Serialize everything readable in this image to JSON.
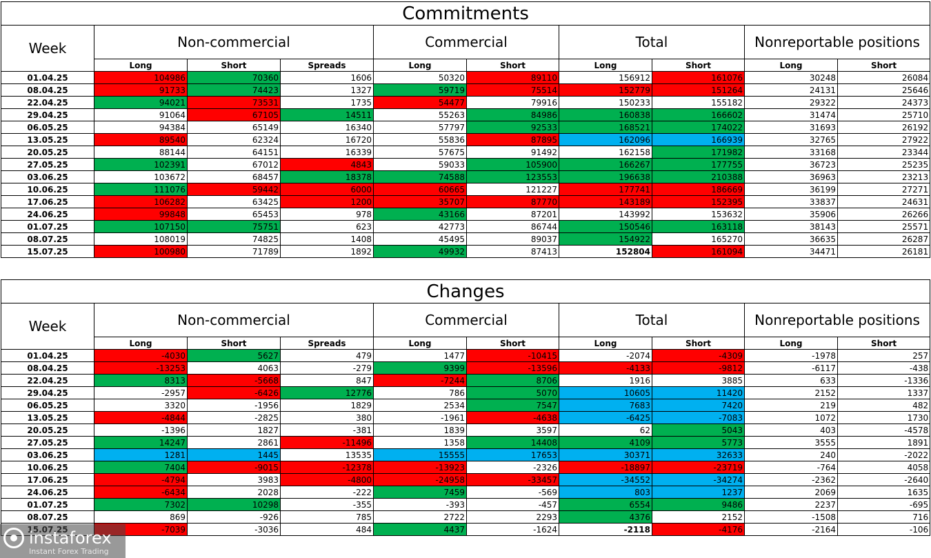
{
  "colors": {
    "red": "#ff0000",
    "green": "#00b050",
    "blue": "#00b0f0",
    "grid": "#000000"
  },
  "groups": {
    "week": "Week",
    "noncommercial": "Non-commercial",
    "commercial": "Commercial",
    "total": "Total",
    "nonreportable": "Nonreportable positions"
  },
  "subheaders": [
    "Long",
    "Short",
    "Spreads",
    "Long",
    "Short",
    "Long",
    "Short",
    "Long",
    "Short"
  ],
  "commitments": {
    "title": "Commitments",
    "rows": [
      {
        "date": "01.04.25",
        "cells": [
          [
            "104986",
            "r"
          ],
          [
            "70360",
            "g"
          ],
          [
            "1606",
            ""
          ],
          [
            "50320",
            ""
          ],
          [
            "89110",
            "r"
          ],
          [
            "156912",
            ""
          ],
          [
            "161076",
            "r"
          ],
          [
            "30248",
            ""
          ],
          [
            "26084",
            ""
          ]
        ]
      },
      {
        "date": "08.04.25",
        "cells": [
          [
            "91733",
            "r"
          ],
          [
            "74423",
            "g"
          ],
          [
            "1327",
            ""
          ],
          [
            "59719",
            "g"
          ],
          [
            "75514",
            "r"
          ],
          [
            "152779",
            "r"
          ],
          [
            "151264",
            "r"
          ],
          [
            "24131",
            ""
          ],
          [
            "25646",
            ""
          ]
        ]
      },
      {
        "date": "22.04.25",
        "cells": [
          [
            "94021",
            "g"
          ],
          [
            "73531",
            "r"
          ],
          [
            "1735",
            ""
          ],
          [
            "54477",
            "r"
          ],
          [
            "79916",
            ""
          ],
          [
            "150233",
            ""
          ],
          [
            "155182",
            ""
          ],
          [
            "29322",
            ""
          ],
          [
            "24373",
            ""
          ]
        ]
      },
      {
        "date": "29.04.25",
        "cells": [
          [
            "91064",
            ""
          ],
          [
            "67105",
            "r"
          ],
          [
            "14511",
            "g"
          ],
          [
            "55263",
            ""
          ],
          [
            "84986",
            "g"
          ],
          [
            "160838",
            "g"
          ],
          [
            "166602",
            "g"
          ],
          [
            "31474",
            ""
          ],
          [
            "25710",
            ""
          ]
        ]
      },
      {
        "date": "06.05.25",
        "cells": [
          [
            "94384",
            ""
          ],
          [
            "65149",
            ""
          ],
          [
            "16340",
            ""
          ],
          [
            "57797",
            ""
          ],
          [
            "92533",
            "g"
          ],
          [
            "168521",
            "g"
          ],
          [
            "174022",
            "g"
          ],
          [
            "31693",
            ""
          ],
          [
            "26192",
            ""
          ]
        ]
      },
      {
        "date": "13.05.25",
        "cells": [
          [
            "89540",
            "r"
          ],
          [
            "62324",
            ""
          ],
          [
            "16720",
            ""
          ],
          [
            "55836",
            ""
          ],
          [
            "87895",
            "r"
          ],
          [
            "162096",
            "b"
          ],
          [
            "166939",
            "b"
          ],
          [
            "32765",
            ""
          ],
          [
            "27922",
            ""
          ]
        ]
      },
      {
        "date": "20.05.25",
        "cells": [
          [
            "88144",
            ""
          ],
          [
            "64151",
            ""
          ],
          [
            "16339",
            ""
          ],
          [
            "57675",
            ""
          ],
          [
            "91492",
            ""
          ],
          [
            "162158",
            ""
          ],
          [
            "171982",
            "g"
          ],
          [
            "33168",
            ""
          ],
          [
            "23344",
            ""
          ]
        ]
      },
      {
        "date": "27.05.25",
        "cells": [
          [
            "102391",
            "g"
          ],
          [
            "67012",
            ""
          ],
          [
            "4843",
            "r"
          ],
          [
            "59033",
            ""
          ],
          [
            "105900",
            "g"
          ],
          [
            "166267",
            "g"
          ],
          [
            "177755",
            "g"
          ],
          [
            "36723",
            ""
          ],
          [
            "25235",
            ""
          ]
        ]
      },
      {
        "date": "03.06.25",
        "cells": [
          [
            "103672",
            ""
          ],
          [
            "68457",
            ""
          ],
          [
            "18378",
            "g"
          ],
          [
            "74588",
            "g"
          ],
          [
            "123553",
            "g"
          ],
          [
            "196638",
            "g"
          ],
          [
            "210388",
            "g"
          ],
          [
            "36963",
            ""
          ],
          [
            "23213",
            ""
          ]
        ]
      },
      {
        "date": "10.06.25",
        "cells": [
          [
            "111076",
            "g"
          ],
          [
            "59442",
            "r"
          ],
          [
            "6000",
            "r"
          ],
          [
            "60665",
            "r"
          ],
          [
            "121227",
            ""
          ],
          [
            "177741",
            "r"
          ],
          [
            "186669",
            "r"
          ],
          [
            "36199",
            ""
          ],
          [
            "27271",
            ""
          ]
        ]
      },
      {
        "date": "17.06.25",
        "cells": [
          [
            "106282",
            "r"
          ],
          [
            "63425",
            ""
          ],
          [
            "1200",
            "r"
          ],
          [
            "35707",
            "r"
          ],
          [
            "87770",
            "r"
          ],
          [
            "143189",
            "r"
          ],
          [
            "152395",
            "r"
          ],
          [
            "33837",
            ""
          ],
          [
            "24631",
            ""
          ]
        ]
      },
      {
        "date": "24.06.25",
        "cells": [
          [
            "99848",
            "r"
          ],
          [
            "65453",
            ""
          ],
          [
            "978",
            ""
          ],
          [
            "43166",
            "g"
          ],
          [
            "87201",
            ""
          ],
          [
            "143992",
            ""
          ],
          [
            "153632",
            ""
          ],
          [
            "35906",
            ""
          ],
          [
            "26266",
            ""
          ]
        ]
      },
      {
        "date": "01.07.25",
        "cells": [
          [
            "107150",
            "g"
          ],
          [
            "75751",
            "g"
          ],
          [
            "623",
            ""
          ],
          [
            "42773",
            ""
          ],
          [
            "86744",
            ""
          ],
          [
            "150546",
            "g"
          ],
          [
            "163118",
            "g"
          ],
          [
            "38143",
            ""
          ],
          [
            "25571",
            ""
          ]
        ]
      },
      {
        "date": "08.07.25",
        "cells": [
          [
            "108019",
            ""
          ],
          [
            "74825",
            ""
          ],
          [
            "1408",
            ""
          ],
          [
            "45495",
            ""
          ],
          [
            "89037",
            ""
          ],
          [
            "154922",
            "g"
          ],
          [
            "165270",
            ""
          ],
          [
            "36635",
            ""
          ],
          [
            "26287",
            ""
          ]
        ]
      },
      {
        "date": "15.07.25",
        "cells": [
          [
            "100980",
            "r"
          ],
          [
            "71789",
            ""
          ],
          [
            "1892",
            ""
          ],
          [
            "49932",
            "g"
          ],
          [
            "87413",
            ""
          ],
          [
            "152804",
            "B"
          ],
          [
            "161094",
            "r"
          ],
          [
            "34471",
            ""
          ],
          [
            "26181",
            ""
          ]
        ]
      }
    ]
  },
  "changes": {
    "title": "Changes",
    "rows": [
      {
        "date": "01.04.25",
        "cells": [
          [
            "-4030",
            "r"
          ],
          [
            "5627",
            "g"
          ],
          [
            "479",
            ""
          ],
          [
            "1477",
            ""
          ],
          [
            "-10415",
            "r"
          ],
          [
            "-2074",
            ""
          ],
          [
            "-4309",
            "r"
          ],
          [
            "-1978",
            ""
          ],
          [
            "257",
            ""
          ]
        ]
      },
      {
        "date": "08.04.25",
        "cells": [
          [
            "-13253",
            "r"
          ],
          [
            "4063",
            ""
          ],
          [
            "-279",
            ""
          ],
          [
            "9399",
            "g"
          ],
          [
            "-13596",
            "r"
          ],
          [
            "-4133",
            "r"
          ],
          [
            "-9812",
            "r"
          ],
          [
            "-6117",
            ""
          ],
          [
            "-438",
            ""
          ]
        ]
      },
      {
        "date": "22.04.25",
        "cells": [
          [
            "8313",
            "g"
          ],
          [
            "-5668",
            "r"
          ],
          [
            "847",
            ""
          ],
          [
            "-7244",
            "r"
          ],
          [
            "8706",
            "g"
          ],
          [
            "1916",
            ""
          ],
          [
            "3885",
            ""
          ],
          [
            "633",
            ""
          ],
          [
            "-1336",
            ""
          ]
        ]
      },
      {
        "date": "29.04.25",
        "cells": [
          [
            "-2957",
            ""
          ],
          [
            "-6426",
            "r"
          ],
          [
            "12776",
            "g"
          ],
          [
            "786",
            ""
          ],
          [
            "5070",
            "g"
          ],
          [
            "10605",
            "b"
          ],
          [
            "11420",
            "b"
          ],
          [
            "2152",
            ""
          ],
          [
            "1337",
            ""
          ]
        ]
      },
      {
        "date": "06.05.25",
        "cells": [
          [
            "3320",
            ""
          ],
          [
            "-1956",
            ""
          ],
          [
            "1829",
            ""
          ],
          [
            "2534",
            ""
          ],
          [
            "7547",
            "g"
          ],
          [
            "7683",
            "b"
          ],
          [
            "7420",
            "b"
          ],
          [
            "219",
            ""
          ],
          [
            "482",
            ""
          ]
        ]
      },
      {
        "date": "13.05.25",
        "cells": [
          [
            "-4844",
            "r"
          ],
          [
            "-2825",
            ""
          ],
          [
            "380",
            ""
          ],
          [
            "-1961",
            ""
          ],
          [
            "-4638",
            "r"
          ],
          [
            "-6425",
            "b"
          ],
          [
            "-7083",
            "b"
          ],
          [
            "1072",
            ""
          ],
          [
            "1730",
            ""
          ]
        ]
      },
      {
        "date": "20.05.25",
        "cells": [
          [
            "-1396",
            ""
          ],
          [
            "1827",
            ""
          ],
          [
            "-381",
            ""
          ],
          [
            "1839",
            ""
          ],
          [
            "3597",
            ""
          ],
          [
            "62",
            ""
          ],
          [
            "5043",
            "g"
          ],
          [
            "403",
            ""
          ],
          [
            "-4578",
            ""
          ]
        ]
      },
      {
        "date": "27.05.25",
        "cells": [
          [
            "14247",
            "g"
          ],
          [
            "2861",
            ""
          ],
          [
            "-11496",
            "r"
          ],
          [
            "1358",
            ""
          ],
          [
            "14408",
            "g"
          ],
          [
            "4109",
            "g"
          ],
          [
            "5773",
            "g"
          ],
          [
            "3555",
            ""
          ],
          [
            "1891",
            ""
          ]
        ]
      },
      {
        "date": "03.06.25",
        "cells": [
          [
            "1281",
            "b"
          ],
          [
            "1445",
            "b"
          ],
          [
            "13535",
            ""
          ],
          [
            "15555",
            "b"
          ],
          [
            "17653",
            "b"
          ],
          [
            "30371",
            "b"
          ],
          [
            "32633",
            "b"
          ],
          [
            "240",
            ""
          ],
          [
            "-2022",
            ""
          ]
        ]
      },
      {
        "date": "10.06.25",
        "cells": [
          [
            "7404",
            "g"
          ],
          [
            "-9015",
            "r"
          ],
          [
            "-12378",
            "r"
          ],
          [
            "-13923",
            "r"
          ],
          [
            "-2326",
            ""
          ],
          [
            "-18897",
            "r"
          ],
          [
            "-23719",
            "r"
          ],
          [
            "-764",
            ""
          ],
          [
            "4058",
            ""
          ]
        ]
      },
      {
        "date": "17.06.25",
        "cells": [
          [
            "-4794",
            "r"
          ],
          [
            "3983",
            ""
          ],
          [
            "-4800",
            "r"
          ],
          [
            "-24958",
            "r"
          ],
          [
            "-33457",
            "r"
          ],
          [
            "-34552",
            "b"
          ],
          [
            "-34274",
            "b"
          ],
          [
            "-2362",
            ""
          ],
          [
            "-2640",
            ""
          ]
        ]
      },
      {
        "date": "24.06.25",
        "cells": [
          [
            "-6434",
            "r"
          ],
          [
            "2028",
            ""
          ],
          [
            "-222",
            ""
          ],
          [
            "7459",
            "g"
          ],
          [
            "-569",
            ""
          ],
          [
            "803",
            "b"
          ],
          [
            "1237",
            "b"
          ],
          [
            "2069",
            ""
          ],
          [
            "1635",
            ""
          ]
        ]
      },
      {
        "date": "01.07.25",
        "cells": [
          [
            "7302",
            "g"
          ],
          [
            "10298",
            "g"
          ],
          [
            "-355",
            ""
          ],
          [
            "-393",
            ""
          ],
          [
            "-457",
            ""
          ],
          [
            "6554",
            "g"
          ],
          [
            "9486",
            "g"
          ],
          [
            "2237",
            ""
          ],
          [
            "-695",
            ""
          ]
        ]
      },
      {
        "date": "08.07.25",
        "cells": [
          [
            "869",
            ""
          ],
          [
            "-926",
            ""
          ],
          [
            "785",
            ""
          ],
          [
            "2722",
            ""
          ],
          [
            "2293",
            ""
          ],
          [
            "4376",
            "g"
          ],
          [
            "2152",
            ""
          ],
          [
            "-1508",
            ""
          ],
          [
            "716",
            ""
          ]
        ]
      },
      {
        "date": "15.07.25",
        "cells": [
          [
            "-7039",
            "r"
          ],
          [
            "-3036",
            ""
          ],
          [
            "484",
            ""
          ],
          [
            "4437",
            "g"
          ],
          [
            "-1624",
            ""
          ],
          [
            "-2118",
            "B"
          ],
          [
            "-4176",
            "r"
          ],
          [
            "-2164",
            ""
          ],
          [
            "-106",
            ""
          ]
        ]
      }
    ]
  },
  "watermark": {
    "name": "instaforex",
    "tagline": "Instant Forex Trading",
    "icon": "instaforex-logo-icon"
  }
}
